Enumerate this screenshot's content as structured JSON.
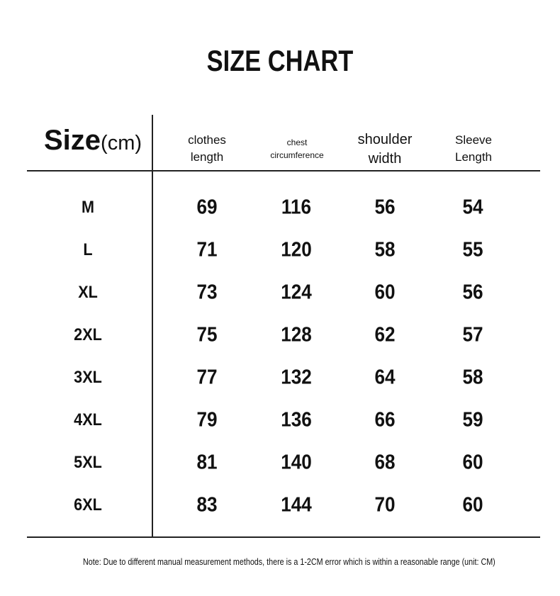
{
  "title": "SIZE CHART",
  "header": {
    "size_label": "Size",
    "size_unit": "(cm)",
    "columns": [
      [
        "clothes",
        "length"
      ],
      [
        "chest",
        "circumference"
      ],
      [
        "shoulder",
        "width"
      ],
      [
        "Sleeve",
        "Length"
      ]
    ]
  },
  "rows": [
    [
      "M",
      "69",
      "116",
      "56",
      "54"
    ],
    [
      "L",
      "71",
      "120",
      "58",
      "55"
    ],
    [
      "XL",
      "73",
      "124",
      "60",
      "56"
    ],
    [
      "2XL",
      "75",
      "128",
      "62",
      "57"
    ],
    [
      "3XL",
      "77",
      "132",
      "64",
      "58"
    ],
    [
      "4XL",
      "79",
      "136",
      "66",
      "59"
    ],
    [
      "5XL",
      "81",
      "140",
      "68",
      "60"
    ],
    [
      "6XL",
      "83",
      "144",
      "70",
      "60"
    ]
  ],
  "note": "Note: Due to different manual measurement methods, there is a 1-2CM error which is within a reasonable range (unit: CM)"
}
